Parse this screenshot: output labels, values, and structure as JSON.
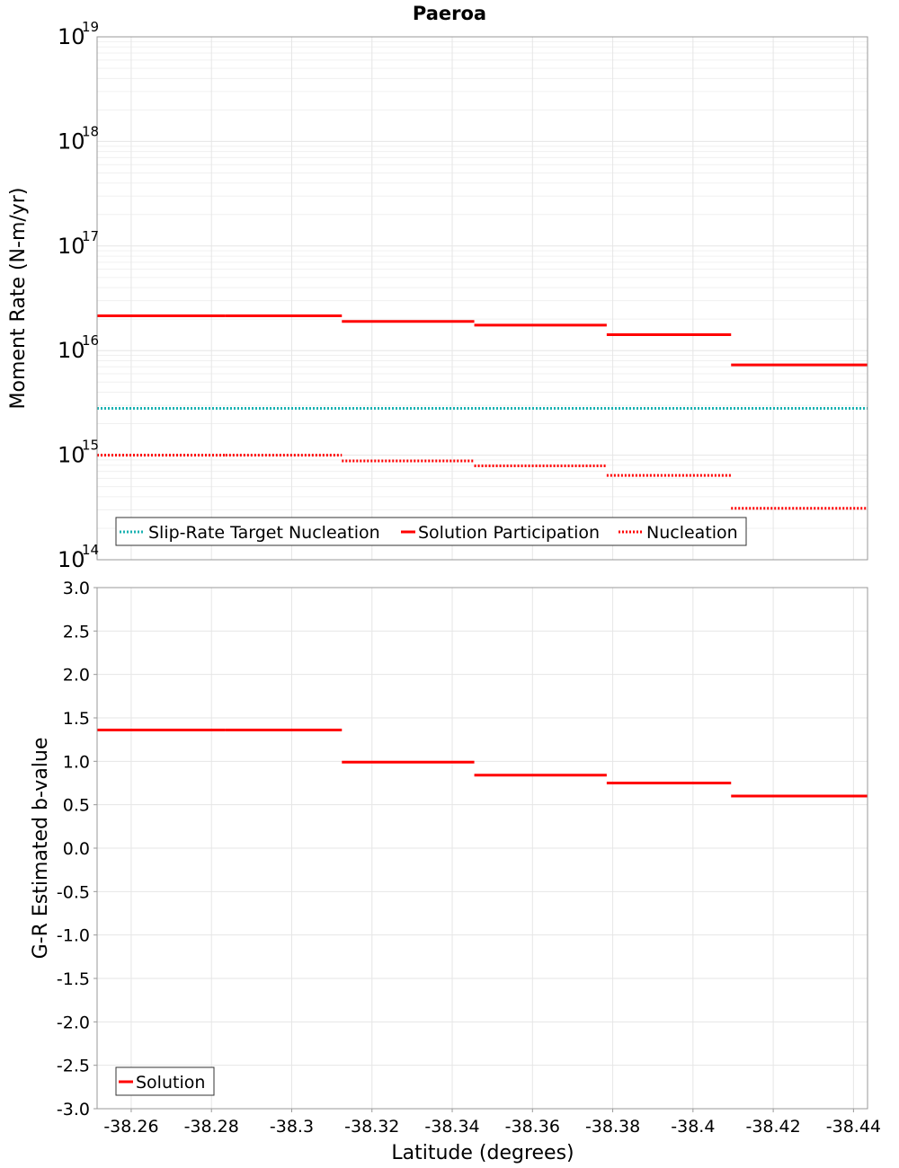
{
  "title": "Paeroa",
  "colors": {
    "slip_rate_target": "#1ab2b2",
    "solution": "#ff0000",
    "grid": "#e6e6e6",
    "minor_grid": "#f0f0f0",
    "border": "#999999"
  },
  "x_axis": {
    "label": "Latitude (degrees)",
    "range": [
      -38.2515,
      -38.4435
    ],
    "reversed": true,
    "ticks": [
      -38.26,
      -38.28,
      -38.3,
      -38.32,
      -38.34,
      -38.36,
      -38.38,
      -38.4,
      -38.42,
      -38.44
    ],
    "tick_labels": [
      "-38.26",
      "-38.28",
      "-38.3",
      "-38.32",
      "-38.34",
      "-38.36",
      "-38.38",
      "-38.4",
      "-38.42",
      "-38.44"
    ]
  },
  "chart_data": [
    {
      "type": "line",
      "title": "Paeroa",
      "xlabel": "Latitude (degrees)",
      "ylabel": "Moment Rate (N-m/yr)",
      "yscale": "log",
      "ylim": [
        100000000000000.0,
        1e+19
      ],
      "y_tick_labels": [
        {
          "base": "10",
          "exp": "14"
        },
        {
          "base": "10",
          "exp": "15"
        },
        {
          "base": "10",
          "exp": "16"
        },
        {
          "base": "10",
          "exp": "17"
        },
        {
          "base": "10",
          "exp": "18"
        },
        {
          "base": "10",
          "exp": "19"
        }
      ],
      "grid": true,
      "legend": "bottom-left",
      "series": [
        {
          "name": "Slip-Rate Target Nucleation",
          "style": "dotted",
          "color": "#1ab2b2",
          "segments": [
            {
              "x0": -38.2515,
              "x1": -38.4435,
              "y": 2800000000000000.0
            }
          ]
        },
        {
          "name": "Solution Participation",
          "style": "solid",
          "color": "#ff0000",
          "segments": [
            {
              "x0": -38.2515,
              "x1": -38.2835,
              "y": 2.15e+16
            },
            {
              "x0": -38.2835,
              "x1": -38.3125,
              "y": 2.15e+16
            },
            {
              "x0": -38.3125,
              "x1": -38.3455,
              "y": 1.9e+16
            },
            {
              "x0": -38.3455,
              "x1": -38.3785,
              "y": 1.75e+16
            },
            {
              "x0": -38.3785,
              "x1": -38.4095,
              "y": 1.42e+16
            },
            {
              "x0": -38.4095,
              "x1": -38.4435,
              "y": 7300000000000000.0
            }
          ]
        },
        {
          "name": "Nucleation",
          "style": "dotted",
          "color": "#ff0000",
          "segments": [
            {
              "x0": -38.2515,
              "x1": -38.2835,
              "y": 1000000000000000.0
            },
            {
              "x0": -38.2835,
              "x1": -38.3125,
              "y": 1000000000000000.0
            },
            {
              "x0": -38.3125,
              "x1": -38.3455,
              "y": 880000000000000.0
            },
            {
              "x0": -38.3455,
              "x1": -38.3785,
              "y": 790000000000000.0
            },
            {
              "x0": -38.3785,
              "x1": -38.4095,
              "y": 640000000000000.0
            },
            {
              "x0": -38.4095,
              "x1": -38.4435,
              "y": 310000000000000.0
            }
          ]
        }
      ]
    },
    {
      "type": "line",
      "xlabel": "Latitude (degrees)",
      "ylabel": "G-R Estimated b-value",
      "yscale": "linear",
      "ylim": [
        -3.0,
        3.0
      ],
      "y_ticks": [
        3.0,
        2.5,
        2.0,
        1.5,
        1.0,
        0.5,
        0.0,
        -0.5,
        -1.0,
        -1.5,
        -2.0,
        -2.5,
        -3.0
      ],
      "y_tick_labels": [
        "3.0",
        "2.5",
        "2.0",
        "1.5",
        "1.0",
        "0.5",
        "0.0",
        "-0.5",
        "-1.0",
        "-1.5",
        "-2.0",
        "-2.5",
        "-3.0"
      ],
      "grid": true,
      "legend": "bottom-left",
      "series": [
        {
          "name": "Solution",
          "style": "solid",
          "color": "#ff0000",
          "segments": [
            {
              "x0": -38.2515,
              "x1": -38.2835,
              "y": 1.36
            },
            {
              "x0": -38.2835,
              "x1": -38.3125,
              "y": 1.36
            },
            {
              "x0": -38.3125,
              "x1": -38.3455,
              "y": 0.99
            },
            {
              "x0": -38.3455,
              "x1": -38.3785,
              "y": 0.84
            },
            {
              "x0": -38.3785,
              "x1": -38.4095,
              "y": 0.75
            },
            {
              "x0": -38.4095,
              "x1": -38.4435,
              "y": 0.6
            }
          ]
        }
      ]
    }
  ]
}
